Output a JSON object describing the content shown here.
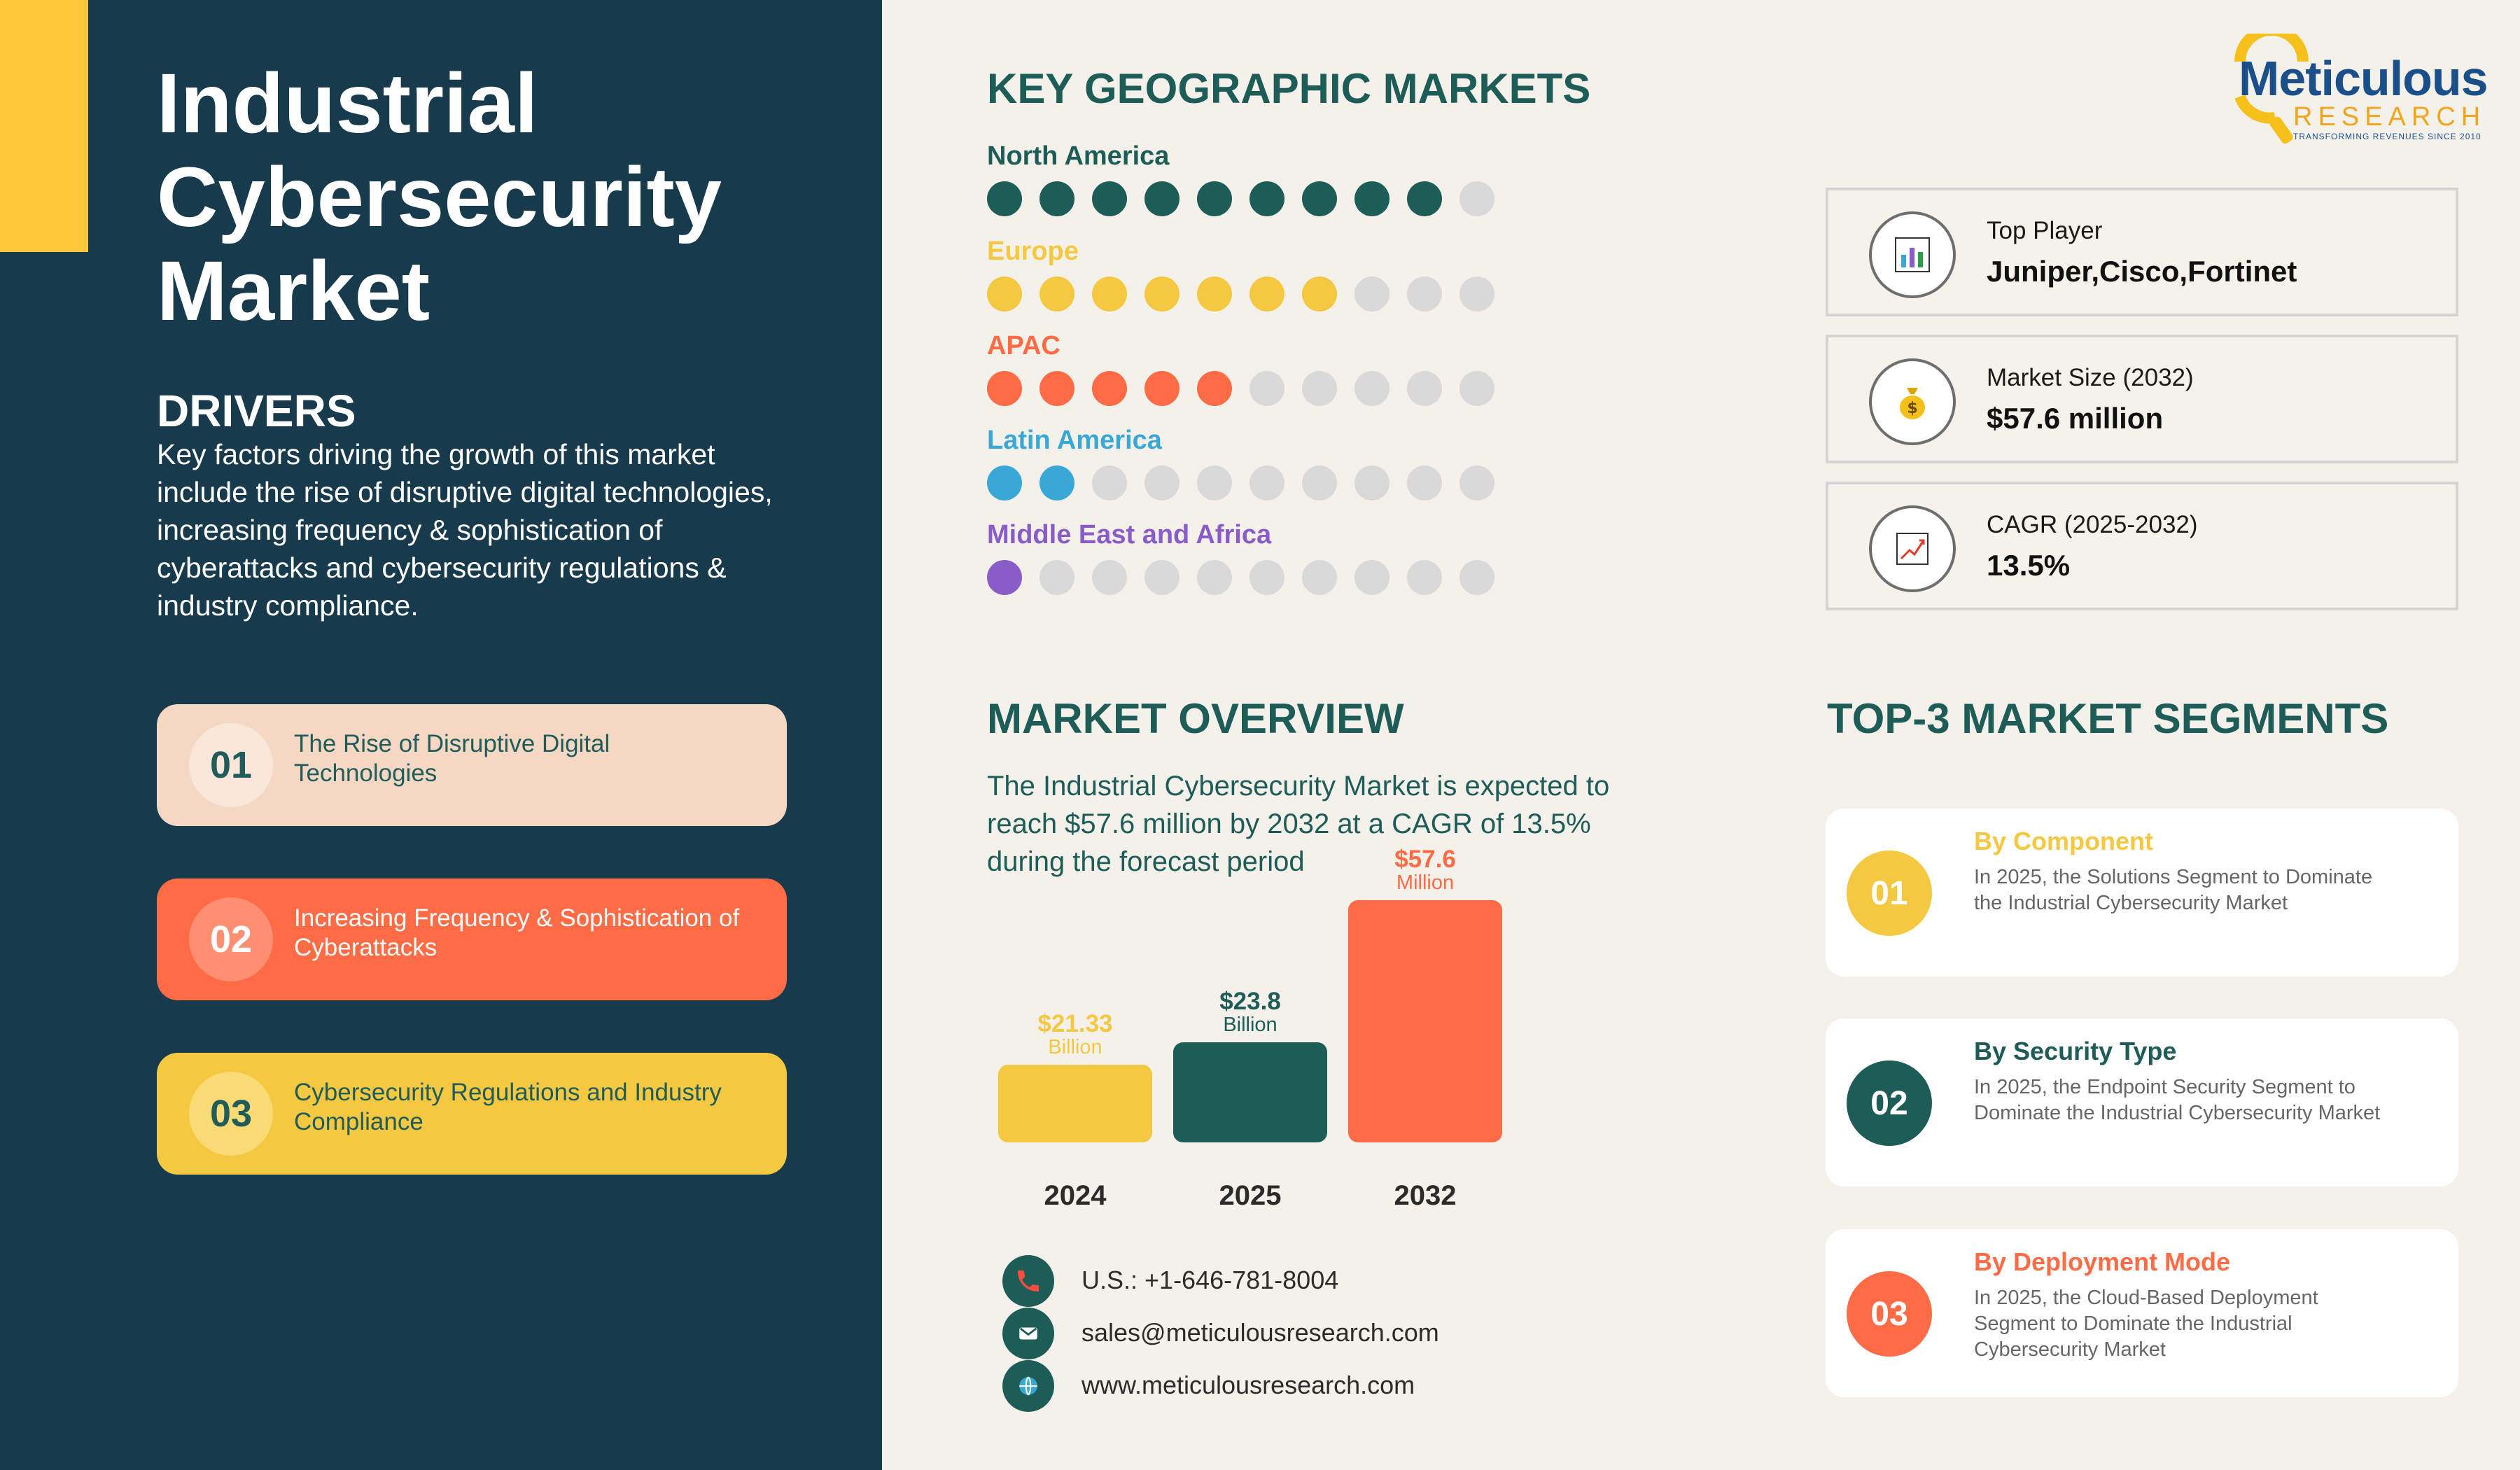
{
  "title_lines": [
    "Industrial",
    "Cybersecurity",
    "Market"
  ],
  "drivers": {
    "heading": "DRIVERS",
    "description": "Key factors driving the growth of this market include the rise of disruptive digital technologies, increasing frequency & sophistication of cyberattacks and cybersecurity regulations & industry compliance.",
    "items": [
      {
        "num": "01",
        "text": "The Rise of Disruptive Digital Technologies"
      },
      {
        "num": "02",
        "text": "Increasing Frequency & Sophistication of Cyberattacks"
      },
      {
        "num": "03",
        "text": "Cybersecurity Regulations and Industry Compliance"
      }
    ]
  },
  "geo": {
    "heading": "KEY GEOGRAPHIC MARKETS",
    "markets": [
      {
        "name": "North America",
        "filled": 9,
        "total": 10,
        "color": "#1d5c57"
      },
      {
        "name": "Europe",
        "filled": 7,
        "total": 10,
        "color": "#f5c842"
      },
      {
        "name": "APAC",
        "filled": 5,
        "total": 10,
        "color": "#ff6b45"
      },
      {
        "name": "Latin America",
        "filled": 2,
        "total": 10,
        "color": "#3aa8d6"
      },
      {
        "name": "Middle East and Africa",
        "filled": 1,
        "total": 10,
        "color": "#8a5cc7"
      }
    ]
  },
  "overview": {
    "heading": "MARKET OVERVIEW",
    "text": "The Industrial Cybersecurity Market  is expected to reach $57.6 million by 2032 at a CAGR of 13.5% during the forecast period"
  },
  "chart_data": {
    "type": "bar",
    "categories": [
      "2024",
      "2025",
      "2032"
    ],
    "values": [
      21.33,
      23.8,
      57.6
    ],
    "value_labels": [
      "$21.33",
      "$23.8",
      "$57.6"
    ],
    "units": [
      "Billion",
      "Billion",
      "Million"
    ],
    "colors": [
      "#f5c842",
      "#1d5c57",
      "#ff6b45"
    ]
  },
  "contact": {
    "phone": "U.S.: +1-646-781-8004",
    "email": "sales@meticulousresearch.com",
    "web": "www.meticulousresearch.com"
  },
  "logo": {
    "name": "Meticulous",
    "sub": "RESEARCH",
    "tagline": "TRANSFORMING REVENUES SINCE 2010"
  },
  "info": [
    {
      "label": "Top Player",
      "value": "Juniper,Cisco,Fortinet",
      "icon": "bar-chart-icon"
    },
    {
      "label": "Market Size (2032)",
      "value": "$57.6 million",
      "icon": "money-bag-icon"
    },
    {
      "label": "CAGR (2025-2032)",
      "value": "13.5%",
      "icon": "trend-chart-icon"
    }
  ],
  "segments": {
    "heading": "TOP-3 MARKET SEGMENTS",
    "items": [
      {
        "num": "01",
        "title": "By Component",
        "desc": " In 2025, the Solutions Segment to Dominate the Industrial Cybersecurity Market",
        "color": "#f5c842"
      },
      {
        "num": "02",
        "title": "By Security Type",
        "desc": "In 2025, the Endpoint Security Segment to Dominate the Industrial Cybersecurity Market",
        "color": "#1d5c57"
      },
      {
        "num": "03",
        "title": "By Deployment Mode",
        "desc": "In 2025, the Cloud-Based Deployment Segment to Dominate the Industrial Cybersecurity Market",
        "color": "#ff6b45"
      }
    ]
  }
}
